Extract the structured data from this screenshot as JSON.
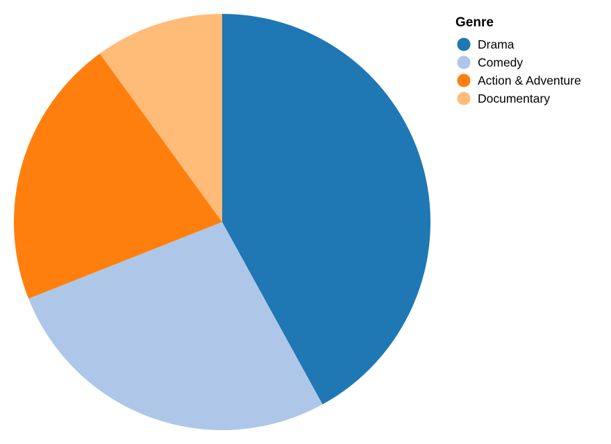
{
  "chart_data": {
    "type": "pie",
    "title": "",
    "legend": {
      "title": "Genre",
      "position": "top-right"
    },
    "categories": [
      "Drama",
      "Comedy",
      "Action & Adventure",
      "Documentary"
    ],
    "values": [
      42,
      27,
      21,
      10
    ],
    "colors": [
      "#1f77b4",
      "#aec7e8",
      "#ff7f0e",
      "#ffbb78"
    ],
    "start_angle_deg": 0,
    "direction": "clockwise"
  }
}
